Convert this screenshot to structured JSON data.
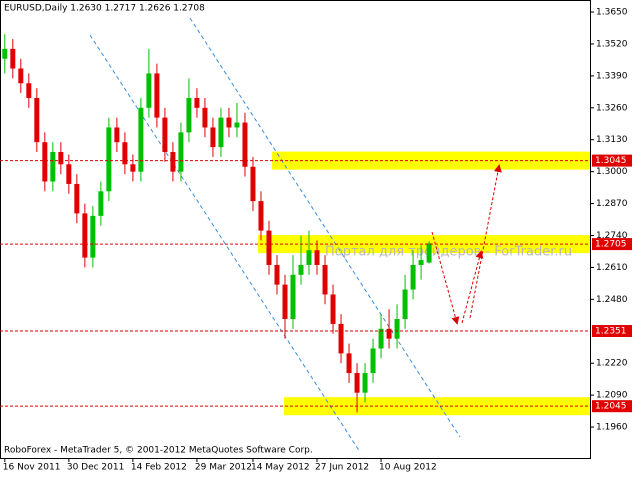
{
  "chart_data": {
    "type": "candlestick",
    "title": "EURUSD,Daily  1.2630 1.2717 1.2626 1.2708",
    "footer": "RoboForex - MetaTrader 5, © 2001-2012 MetaQuotes Software Corp.",
    "watermark": "Портал для трейдеров - ForTrader.ru",
    "up_color": "#00c000",
    "down_color": "#e00000",
    "candles": [
      [
        1.346,
        1.356,
        1.34,
        1.35
      ],
      [
        1.35,
        1.354,
        1.338,
        1.342
      ],
      [
        1.342,
        1.346,
        1.332,
        1.336
      ],
      [
        1.336,
        1.34,
        1.326,
        1.33
      ],
      [
        1.33,
        1.334,
        1.308,
        1.312
      ],
      [
        1.312,
        1.316,
        1.292,
        1.296
      ],
      [
        1.296,
        1.312,
        1.292,
        1.308
      ],
      [
        1.308,
        1.312,
        1.299,
        1.303
      ],
      [
        1.303,
        1.307,
        1.291,
        1.295
      ],
      [
        1.295,
        1.299,
        1.279,
        1.283
      ],
      [
        1.283,
        1.287,
        1.261,
        1.265
      ],
      [
        1.265,
        1.286,
        1.261,
        1.282
      ],
      [
        1.282,
        1.296,
        1.278,
        1.292
      ],
      [
        1.292,
        1.322,
        1.288,
        1.318
      ],
      [
        1.318,
        1.322,
        1.308,
        1.312
      ],
      [
        1.312,
        1.316,
        1.299,
        1.303
      ],
      [
        1.303,
        1.307,
        1.296,
        1.3
      ],
      [
        1.3,
        1.33,
        1.296,
        1.326
      ],
      [
        1.326,
        1.35,
        1.322,
        1.34
      ],
      [
        1.34,
        1.344,
        1.318,
        1.322
      ],
      [
        1.322,
        1.326,
        1.304,
        1.308
      ],
      [
        1.308,
        1.312,
        1.296,
        1.3
      ],
      [
        1.3,
        1.32,
        1.296,
        1.316
      ],
      [
        1.316,
        1.338,
        1.312,
        1.33
      ],
      [
        1.33,
        1.334,
        1.322,
        1.326
      ],
      [
        1.326,
        1.33,
        1.314,
        1.318
      ],
      [
        1.318,
        1.322,
        1.306,
        1.31
      ],
      [
        1.31,
        1.326,
        1.306,
        1.322
      ],
      [
        1.322,
        1.326,
        1.314,
        1.318
      ],
      [
        1.318,
        1.328,
        1.314,
        1.32
      ],
      [
        1.32,
        1.324,
        1.298,
        1.302
      ],
      [
        1.302,
        1.306,
        1.284,
        1.288
      ],
      [
        1.288,
        1.292,
        1.272,
        1.276
      ],
      [
        1.276,
        1.28,
        1.258,
        1.262
      ],
      [
        1.262,
        1.266,
        1.25,
        1.254
      ],
      [
        1.254,
        1.258,
        1.232,
        1.24
      ],
      [
        1.24,
        1.266,
        1.236,
        1.258
      ],
      [
        1.258,
        1.274,
        1.254,
        1.262
      ],
      [
        1.262,
        1.276,
        1.258,
        1.268
      ],
      [
        1.268,
        1.272,
        1.258,
        1.262
      ],
      [
        1.262,
        1.266,
        1.246,
        1.25
      ],
      [
        1.25,
        1.254,
        1.234,
        1.238
      ],
      [
        1.238,
        1.242,
        1.222,
        1.226
      ],
      [
        1.226,
        1.23,
        1.214,
        1.218
      ],
      [
        1.218,
        1.222,
        1.202,
        1.21
      ],
      [
        1.21,
        1.222,
        1.206,
        1.218
      ],
      [
        1.218,
        1.232,
        1.214,
        1.228
      ],
      [
        1.228,
        1.242,
        1.224,
        1.236
      ],
      [
        1.236,
        1.244,
        1.228,
        1.232
      ],
      [
        1.232,
        1.246,
        1.228,
        1.24
      ],
      [
        1.24,
        1.258,
        1.236,
        1.252
      ],
      [
        1.252,
        1.268,
        1.248,
        1.262
      ],
      [
        1.262,
        1.27,
        1.256,
        1.264
      ],
      [
        1.263,
        1.2717,
        1.2626,
        1.2708
      ]
    ],
    "xlim": [
      -0.6,
      73.1
    ],
    "xticks": [
      {
        "value": 0,
        "label": "16 Nov 2011"
      },
      {
        "value": 8,
        "label": "30 Dec 2011"
      },
      {
        "value": 16,
        "label": "14 Feb 2012"
      },
      {
        "value": 24,
        "label": "29 Mar 2012"
      },
      {
        "value": 31,
        "label": "14 May 2012"
      },
      {
        "value": 39,
        "label": "27 Jun 2012"
      },
      {
        "value": 47,
        "label": "10 Aug 2012"
      }
    ],
    "ylim": [
      1.1834,
      1.3699
    ],
    "yticks": [
      {
        "value": 1.365,
        "label": "1.3650"
      },
      {
        "value": 1.352,
        "label": "1.3520"
      },
      {
        "value": 1.339,
        "label": "1.3390"
      },
      {
        "value": 1.326,
        "label": "1.3260"
      },
      {
        "value": 1.313,
        "label": "1.3130"
      },
      {
        "value": 1.3,
        "label": "1.3000"
      },
      {
        "value": 1.287,
        "label": "1.2870"
      },
      {
        "value": 1.274,
        "label": "1.2740"
      },
      {
        "value": 1.261,
        "label": "1.2610"
      },
      {
        "value": 1.248,
        "label": "1.2480"
      },
      {
        "value": 1.222,
        "label": "1.2220"
      },
      {
        "value": 1.209,
        "label": "1.2090"
      },
      {
        "value": 1.196,
        "label": "1.1960"
      }
    ],
    "levels": [
      1.3045,
      1.2705,
      1.2351,
      1.2045
    ],
    "level_color": "#e00000",
    "band_color": "#ffff00",
    "grid": false
  }
}
